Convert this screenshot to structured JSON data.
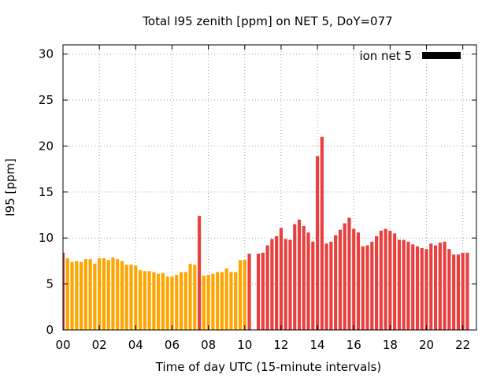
{
  "chart_data": {
    "type": "bar",
    "title": "Total I95 zenith [ppm] on NET 5, DoY=077",
    "xlabel": "Time of day UTC (15-minute intervals)",
    "ylabel": "I95 [ppm]",
    "ylim": [
      0,
      31
    ],
    "xlim_hours": [
      0,
      22.75
    ],
    "yticks": [
      0,
      5,
      10,
      15,
      20,
      25,
      30
    ],
    "xticks": [
      {
        "hour": 0,
        "label": "00"
      },
      {
        "hour": 2,
        "label": "02"
      },
      {
        "hour": 4,
        "label": "04"
      },
      {
        "hour": 6,
        "label": "06"
      },
      {
        "hour": 8,
        "label": "08"
      },
      {
        "hour": 10,
        "label": "10"
      },
      {
        "hour": 12,
        "label": "12"
      },
      {
        "hour": 14,
        "label": "14"
      },
      {
        "hour": 16,
        "label": "16"
      },
      {
        "hour": 18,
        "label": "18"
      },
      {
        "hour": 20,
        "label": "20"
      },
      {
        "hour": 22,
        "label": "22"
      }
    ],
    "grid": true,
    "legend": {
      "label": "ion net 5",
      "position": "top-right",
      "color": "#000000"
    },
    "bar_interval_hours": 0.25,
    "colors": {
      "orange": "#FFA500",
      "red": "#E8403E"
    },
    "series": [
      {
        "name": "orange",
        "color": "#FFA500",
        "start_hour": 0.25,
        "values": [
          7.8,
          7.4,
          7.5,
          7.4,
          7.7,
          7.7,
          7.2,
          7.8,
          7.8,
          7.6,
          7.9,
          7.7,
          7.5,
          7.1,
          7.1,
          7.0,
          6.5,
          6.4,
          6.4,
          6.3,
          6.1,
          6.2,
          5.8,
          5.8,
          6.0,
          6.3,
          6.3,
          7.2,
          7.1,
          5.6,
          5.9,
          6.0,
          6.1,
          6.3,
          6.3,
          6.7,
          6.3,
          6.3,
          7.6,
          7.6,
          7.6
        ]
      },
      {
        "name": "red",
        "color": "#E8403E",
        "bars": [
          {
            "hour": 0.0,
            "value": 8.4
          },
          {
            "hour": 7.5,
            "value": 12.4
          },
          {
            "hour": 10.25,
            "value": 8.3
          }
        ],
        "start_hour": 10.75,
        "values": [
          8.3,
          8.4,
          9.2,
          9.9,
          10.2,
          11.1,
          9.9,
          9.8,
          11.5,
          12.0,
          11.3,
          10.6,
          9.6,
          18.9,
          21.0,
          9.4,
          9.6,
          10.3,
          10.9,
          11.6,
          12.2,
          11.0,
          10.6,
          9.1,
          9.2,
          9.6,
          10.2,
          10.8,
          11.0,
          10.8,
          10.5,
          9.8,
          9.8,
          9.6,
          9.3,
          9.1,
          8.9,
          8.8,
          9.4,
          9.2,
          9.5,
          9.6,
          8.8,
          8.2,
          8.2,
          8.4,
          8.4
        ]
      }
    ]
  }
}
